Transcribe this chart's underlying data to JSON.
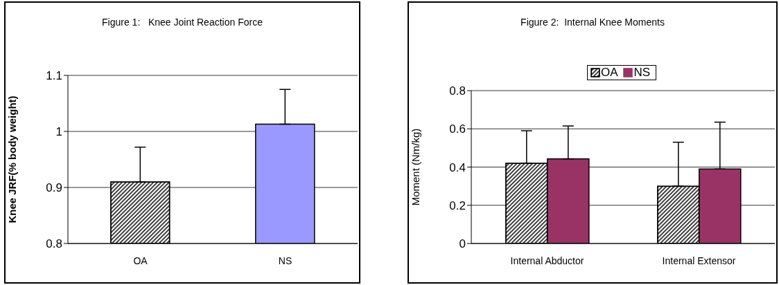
{
  "chart_data": [
    {
      "type": "bar",
      "title": "Figure 1:   Knee Joint Reaction Force",
      "ylabel": "Knee JRF(% body weight)",
      "categories": [
        "OA",
        "NS"
      ],
      "values": [
        0.91,
        1.013
      ],
      "colors": [
        "#000000",
        "#9999ff"
      ],
      "errors": [
        [
          0.91,
          0.972
        ],
        [
          1.013,
          1.075
        ]
      ],
      "ylim": [
        0.8,
        1.1
      ],
      "yticks": [
        0.8,
        0.9,
        1,
        1.1
      ],
      "grid": "y",
      "legend": false
    },
    {
      "type": "bar",
      "title": "Figure 2:  Internal Knee Moments",
      "ylabel": "Moment (Nm/kg)",
      "categories": [
        "Internal Abductor",
        "Internal Extensor"
      ],
      "series": [
        {
          "name": "OA",
          "color": "#000000",
          "values": [
            0.42,
            0.3
          ],
          "errors": [
            [
              0.42,
              0.59
            ],
            [
              0.3,
              0.53
            ]
          ]
        },
        {
          "name": "NS",
          "color": "#993366",
          "values": [
            0.443,
            0.39
          ],
          "errors": [
            [
              0.443,
              0.615
            ],
            [
              0.39,
              0.635
            ]
          ]
        }
      ],
      "ylim": [
        0,
        0.8
      ],
      "yticks": [
        0,
        0.2,
        0.4,
        0.6,
        0.8
      ],
      "grid": "y",
      "legend": "top"
    }
  ]
}
